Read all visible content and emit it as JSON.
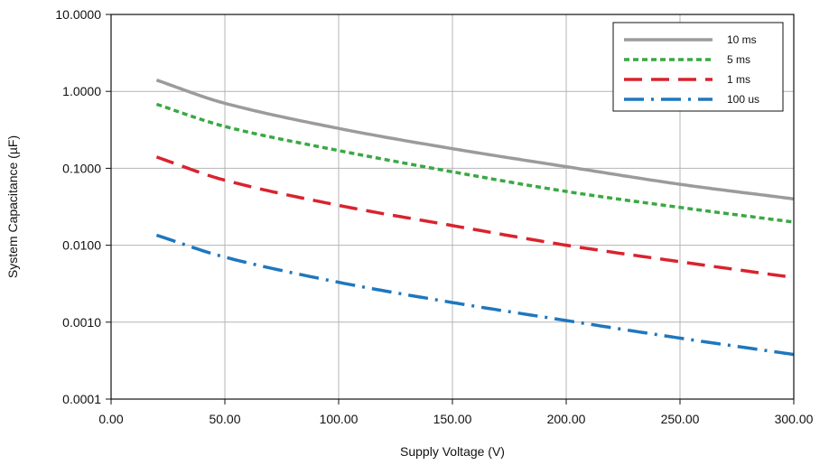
{
  "chart_data": {
    "type": "line",
    "xlabel": "Supply Voltage (V)",
    "ylabel": "System Capacitance (µF)",
    "xlim": [
      0,
      300
    ],
    "ylim": [
      0.0001,
      10
    ],
    "yscale": "log",
    "grid": true,
    "legend_position": "top-right",
    "x_ticks": [
      "0.00",
      "50.00",
      "100.00",
      "150.00",
      "200.00",
      "250.00",
      "300.00"
    ],
    "y_ticks": [
      "0.0001",
      "0.0010",
      "0.0100",
      "0.1000",
      "1.0000",
      "10.0000"
    ],
    "x": [
      20,
      50,
      100,
      150,
      200,
      250,
      300
    ],
    "series": [
      {
        "name": "10 ms",
        "color": "#9b9b9b",
        "dash": "solid",
        "values": [
          1.4,
          0.7,
          0.33,
          0.18,
          0.105,
          0.062,
          0.04
        ]
      },
      {
        "name": "5 ms",
        "color": "#3aa844",
        "dash": "dotted",
        "values": [
          0.68,
          0.35,
          0.17,
          0.09,
          0.05,
          0.031,
          0.02
        ]
      },
      {
        "name": "1 ms",
        "color": "#d9232e",
        "dash": "dashed",
        "values": [
          0.14,
          0.07,
          0.033,
          0.018,
          0.01,
          0.0061,
          0.0038
        ]
      },
      {
        "name": "100 us",
        "color": "#1f77bd",
        "dash": "dashdot",
        "values": [
          0.0135,
          0.007,
          0.0033,
          0.0018,
          0.00105,
          0.00062,
          0.00038
        ]
      }
    ]
  }
}
